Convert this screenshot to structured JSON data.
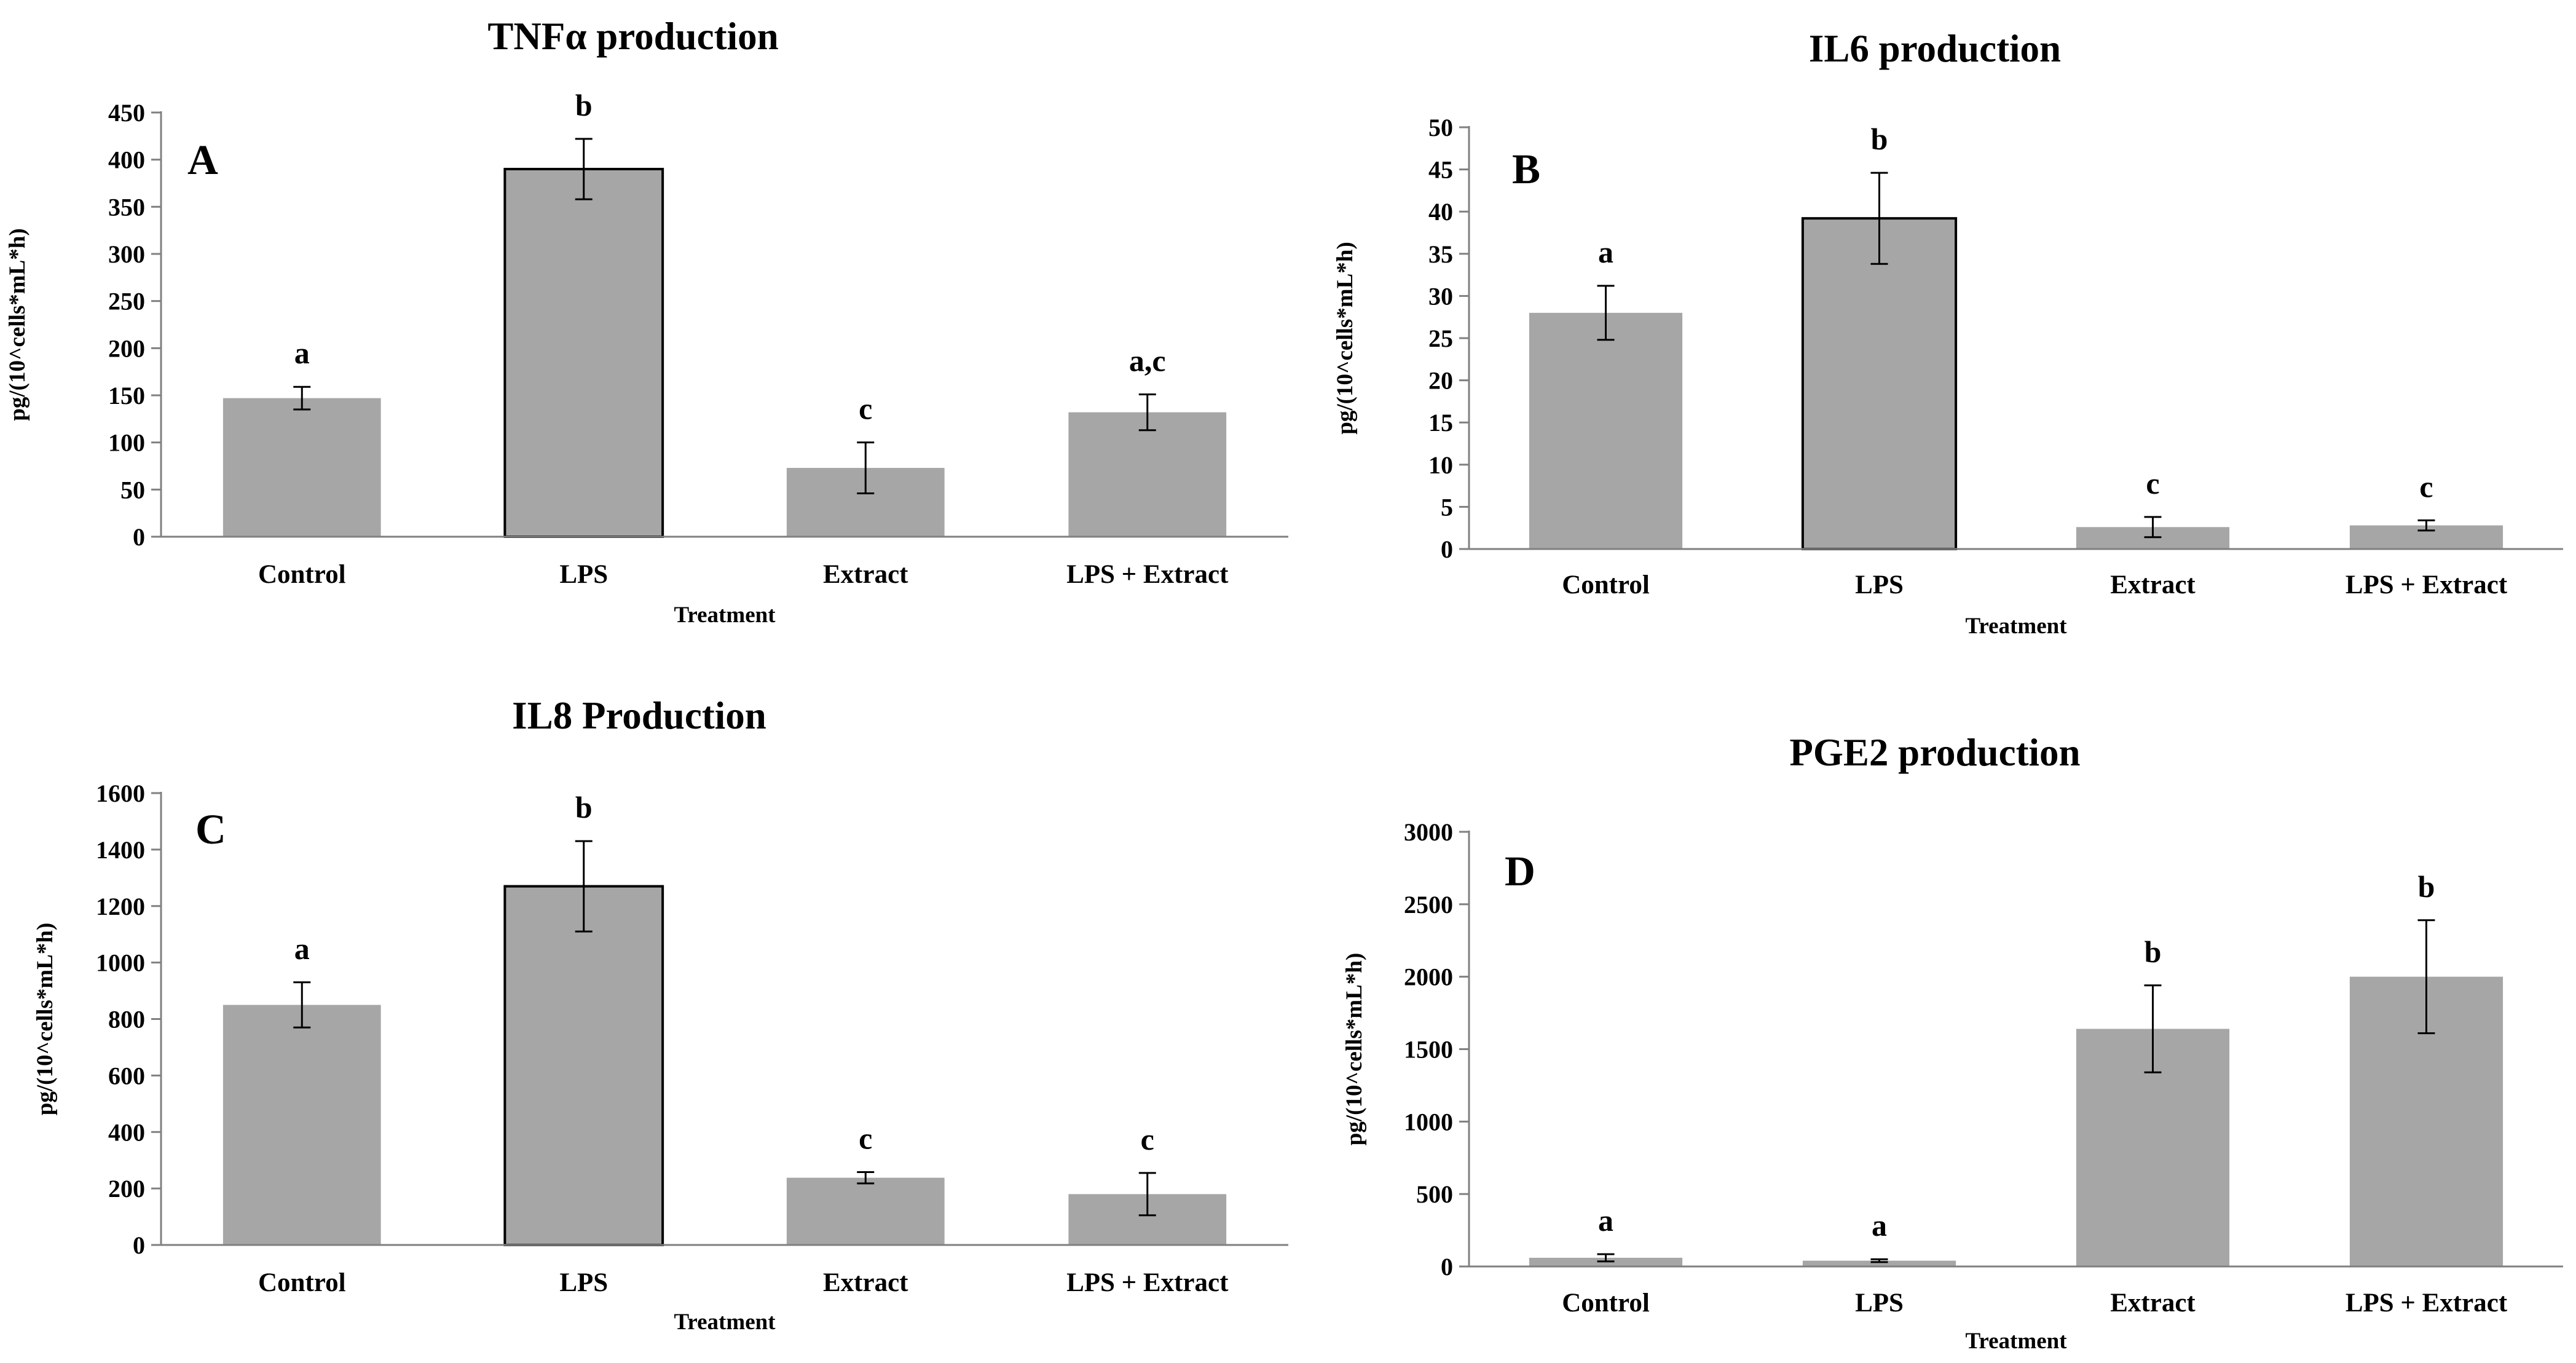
{
  "chart_data": [
    {
      "type": "bar",
      "title": "TNFα production",
      "panel_label": "A",
      "xlabel": "Treatment",
      "ylabel": "pg/(10^cells*mL*h)",
      "ylim": [
        0,
        450
      ],
      "yticks": [
        0,
        50,
        100,
        150,
        200,
        250,
        300,
        350,
        400,
        450
      ],
      "categories": [
        "Control",
        "LPS",
        "Extract",
        "LPS + Extract"
      ],
      "values": [
        147,
        390,
        73,
        132
      ],
      "errors": [
        12,
        32,
        27,
        19
      ],
      "significance": [
        "a",
        "b",
        "c",
        "a,c"
      ],
      "outlined": [
        false,
        true,
        false,
        false
      ],
      "bar_color": "#a6a6a6",
      "grid": false
    },
    {
      "type": "bar",
      "title": "IL6 production",
      "panel_label": "B",
      "xlabel": "Treatment",
      "ylabel": "pg/(10^cells*mL*h)",
      "ylim": [
        0,
        50
      ],
      "yticks": [
        0,
        5,
        10,
        15,
        20,
        25,
        30,
        35,
        40,
        45,
        50
      ],
      "categories": [
        "Control",
        "LPS",
        "Extract",
        "LPS + Extract"
      ],
      "values": [
        28,
        39.2,
        2.6,
        2.8
      ],
      "errors": [
        3.2,
        5.4,
        1.2,
        0.6
      ],
      "significance": [
        "a",
        "b",
        "c",
        "c"
      ],
      "outlined": [
        false,
        true,
        false,
        false
      ],
      "bar_color": "#a6a6a6",
      "grid": false
    },
    {
      "type": "bar",
      "title": "IL8 Production",
      "panel_label": "C",
      "xlabel": "Treatment",
      "ylabel": "pg/(10^cells*mL*h)",
      "ylim": [
        0,
        1600
      ],
      "yticks": [
        0,
        200,
        400,
        600,
        800,
        1000,
        1200,
        1400,
        1600
      ],
      "categories": [
        "Control",
        "LPS",
        "Extract",
        "LPS + Extract"
      ],
      "values": [
        850,
        1270,
        238,
        180
      ],
      "errors": [
        80,
        160,
        20,
        75
      ],
      "significance": [
        "a",
        "b",
        "c",
        "c"
      ],
      "outlined": [
        false,
        true,
        false,
        false
      ],
      "bar_color": "#a6a6a6",
      "grid": false
    },
    {
      "type": "bar",
      "title": "PGE2 production",
      "panel_label": "D",
      "xlabel": "Treatment",
      "ylabel": "pg/(10^cells*mL*h)",
      "ylim": [
        0,
        3000
      ],
      "yticks": [
        0,
        500,
        1000,
        1500,
        2000,
        2500,
        3000
      ],
      "categories": [
        "Control",
        "LPS",
        "Extract",
        "LPS + Extract"
      ],
      "values": [
        60,
        40,
        1640,
        2000
      ],
      "errors": [
        25,
        10,
        300,
        390
      ],
      "significance": [
        "a",
        "a",
        "b",
        "b"
      ],
      "outlined": [
        false,
        false,
        false,
        false
      ],
      "bar_color": "#a6a6a6",
      "grid": false
    }
  ]
}
